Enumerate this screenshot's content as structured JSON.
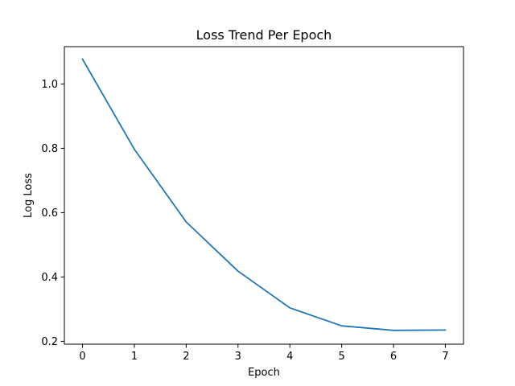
{
  "chart_data": {
    "type": "line",
    "title": "Loss Trend Per Epoch",
    "xlabel": "Epoch",
    "ylabel": "Log Loss",
    "x": [
      0,
      1,
      2,
      3,
      4,
      5,
      6,
      7
    ],
    "series": [
      {
        "values": [
          1.077,
          0.797,
          0.571,
          0.418,
          0.304,
          0.248,
          0.234,
          0.235
        ],
        "color": "#1f77b4"
      }
    ],
    "xlim": [
      -0.35,
      7.35
    ],
    "ylim": [
      0.191,
      1.116
    ],
    "xticks": [
      0,
      1,
      2,
      3,
      4,
      5,
      6,
      7
    ],
    "yticks": [
      0.2,
      0.4,
      0.6,
      0.8,
      1.0
    ],
    "xtick_labels": [
      "0",
      "1",
      "2",
      "3",
      "4",
      "5",
      "6",
      "7"
    ],
    "ytick_labels": [
      "0.2",
      "0.4",
      "0.6",
      "0.8",
      "1.0"
    ],
    "grid": false,
    "legend": false
  }
}
